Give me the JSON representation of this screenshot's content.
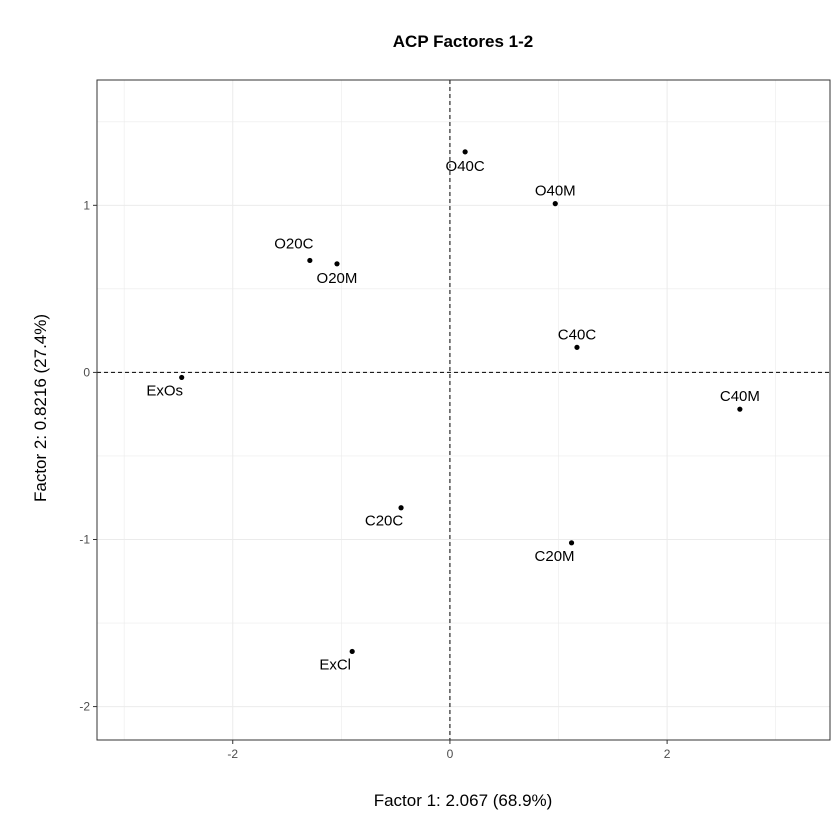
{
  "chart_data": {
    "type": "scatter",
    "title": "ACP Factores 1-2",
    "xlabel": "Factor 1: 2.067 (68.9%)",
    "ylabel": "Factor 2: 0.8216 (27.4%)",
    "xlim": [
      -3.25,
      3.5
    ],
    "ylim": [
      -2.2,
      1.75
    ],
    "x_ticks": [
      -2,
      0,
      2
    ],
    "x_tick_labels": [
      "-2",
      "0",
      "2"
    ],
    "y_ticks": [
      -2,
      -1,
      0,
      1
    ],
    "y_tick_labels": [
      "-2",
      "-1",
      "0",
      "1"
    ],
    "grid": true,
    "reference_lines": {
      "x": 0,
      "y": 0,
      "style": "dashed"
    },
    "points": [
      {
        "label": "O40C",
        "x": 0.14,
        "y": 1.32,
        "label_pos": "below"
      },
      {
        "label": "O40M",
        "x": 0.97,
        "y": 1.01,
        "label_pos": "above"
      },
      {
        "label": "O20C",
        "x": -1.29,
        "y": 0.67,
        "label_pos": "above-left"
      },
      {
        "label": "O20M",
        "x": -1.04,
        "y": 0.65,
        "label_pos": "below"
      },
      {
        "label": "C40C",
        "x": 1.17,
        "y": 0.15,
        "label_pos": "above"
      },
      {
        "label": "ExOs",
        "x": -2.47,
        "y": -0.03,
        "label_pos": "below-left"
      },
      {
        "label": "C40M",
        "x": 2.67,
        "y": -0.22,
        "label_pos": "above"
      },
      {
        "label": "C20C",
        "x": -0.45,
        "y": -0.81,
        "label_pos": "below-left"
      },
      {
        "label": "C20M",
        "x": 1.12,
        "y": -1.02,
        "label_pos": "below-left"
      },
      {
        "label": "ExCl",
        "x": -0.9,
        "y": -1.67,
        "label_pos": "below-left"
      }
    ],
    "colors": {
      "points": "#000000",
      "grid": "#ebebeb",
      "panel_border": "#333333",
      "reference": "#000000"
    }
  }
}
